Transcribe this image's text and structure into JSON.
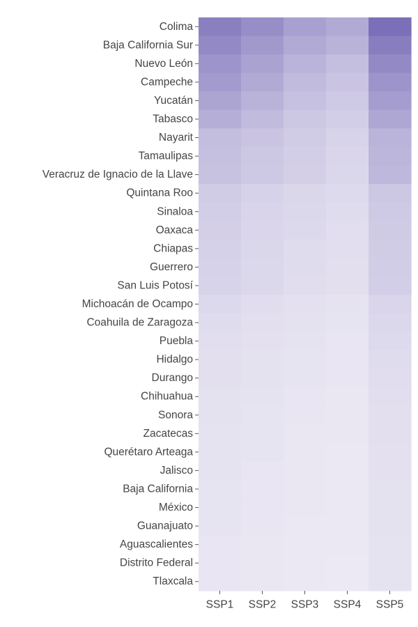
{
  "chart_data": {
    "type": "heatmap",
    "colorscale": [
      "#ece9f4",
      "#7a6fb8"
    ],
    "x": [
      "SSP1",
      "SSP2",
      "SSP3",
      "SSP4",
      "SSP5"
    ],
    "y": [
      "Colima",
      "Baja California Sur",
      "Nuevo León",
      "Campeche",
      "Yucatán",
      "Tabasco",
      "Nayarit",
      "Tamaulipas",
      "Veracruz de Ignacio de la Llave",
      "Quintana Roo",
      "Sinaloa",
      "Oaxaca",
      "Chiapas",
      "Guerrero",
      "San Luis Potosí",
      "Michoacán de Ocampo",
      "Coahuila de Zaragoza",
      "Puebla",
      "Hidalgo",
      "Durango",
      "Chihuahua",
      "Sonora",
      "Zacatecas",
      "Querétaro Arteaga",
      "Jalisco",
      "Baja California",
      "México",
      "Guanajuato",
      "Aguascalientes",
      "Distrito Federal",
      "Tlaxcala"
    ],
    "z": [
      [
        0.86,
        0.75,
        0.6,
        0.52,
        1.0
      ],
      [
        0.78,
        0.66,
        0.52,
        0.45,
        0.88
      ],
      [
        0.7,
        0.58,
        0.44,
        0.35,
        0.78
      ],
      [
        0.64,
        0.52,
        0.38,
        0.3,
        0.7
      ],
      [
        0.56,
        0.45,
        0.33,
        0.26,
        0.62
      ],
      [
        0.48,
        0.38,
        0.28,
        0.22,
        0.54
      ],
      [
        0.36,
        0.3,
        0.24,
        0.18,
        0.44
      ],
      [
        0.34,
        0.28,
        0.22,
        0.16,
        0.42
      ],
      [
        0.32,
        0.27,
        0.21,
        0.15,
        0.4
      ],
      [
        0.24,
        0.19,
        0.15,
        0.12,
        0.28
      ],
      [
        0.22,
        0.17,
        0.14,
        0.11,
        0.26
      ],
      [
        0.21,
        0.16,
        0.13,
        0.09,
        0.25
      ],
      [
        0.2,
        0.15,
        0.11,
        0.09,
        0.24
      ],
      [
        0.19,
        0.14,
        0.11,
        0.08,
        0.23
      ],
      [
        0.18,
        0.14,
        0.1,
        0.08,
        0.22
      ],
      [
        0.13,
        0.1,
        0.07,
        0.05,
        0.16
      ],
      [
        0.11,
        0.08,
        0.06,
        0.04,
        0.14
      ],
      [
        0.09,
        0.07,
        0.05,
        0.03,
        0.12
      ],
      [
        0.08,
        0.06,
        0.04,
        0.03,
        0.11
      ],
      [
        0.08,
        0.06,
        0.04,
        0.03,
        0.1
      ],
      [
        0.06,
        0.05,
        0.03,
        0.02,
        0.09
      ],
      [
        0.06,
        0.04,
        0.03,
        0.02,
        0.08
      ],
      [
        0.05,
        0.04,
        0.02,
        0.02,
        0.08
      ],
      [
        0.05,
        0.04,
        0.02,
        0.01,
        0.07
      ],
      [
        0.05,
        0.03,
        0.02,
        0.01,
        0.07
      ],
      [
        0.04,
        0.03,
        0.02,
        0.01,
        0.06
      ],
      [
        0.04,
        0.03,
        0.02,
        0.01,
        0.06
      ],
      [
        0.04,
        0.03,
        0.01,
        0.01,
        0.06
      ],
      [
        0.03,
        0.02,
        0.01,
        0.01,
        0.05
      ],
      [
        0.03,
        0.02,
        0.01,
        0.0,
        0.05
      ],
      [
        0.03,
        0.02,
        0.01,
        0.0,
        0.05
      ]
    ]
  }
}
